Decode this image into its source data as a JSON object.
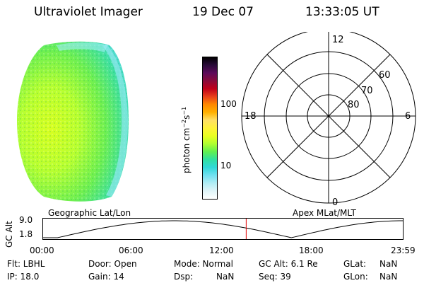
{
  "header": {
    "instrument": "Ultraviolet Imager",
    "date": "19 Dec 07",
    "time": "13:33:05 UT"
  },
  "colorbar": {
    "label": "photon cm-2s-1",
    "tick_labels": [
      "100",
      "10"
    ],
    "colors": [
      "#000000",
      "#2a0a3a",
      "#5c0a5a",
      "#8a0a3a",
      "#c0001a",
      "#e8401a",
      "#ff8800",
      "#ffb000",
      "#ffe066",
      "#fff23a",
      "#e9ff20",
      "#b0ff30",
      "#60f050",
      "#30e0a0",
      "#30d8d8",
      "#70e0f0",
      "#b0ecf4",
      "#dff4f8",
      "#ffffff"
    ]
  },
  "polar_grid": {
    "mlt_labels": {
      "top": "12",
      "bottom": "0",
      "left": "18",
      "right": "6"
    },
    "lat_labels": [
      "60",
      "70",
      "80"
    ]
  },
  "timeline": {
    "left_label": "Geographic Lat/Lon",
    "right_label": "Apex MLat/MLT",
    "ylabel": "GC Alt",
    "y_ticks": [
      "9.0",
      "1.8"
    ],
    "x_ticks": [
      "00:00",
      "06:00",
      "12:00",
      "18:00",
      "23:59"
    ],
    "marker_time": "13:33",
    "orbit_color": "#000000",
    "marker_color": "#e00000"
  },
  "info": {
    "rows": [
      [
        "Flt: LBHL",
        "Door: Open",
        "Mode: Normal",
        "GC Alt: 6.1 Re",
        "GLat:",
        "NaN"
      ],
      [
        "IP: 18.0",
        "Gain: 14",
        "Dsp:",
        "NaN",
        "Seq: 39",
        "GLon:",
        "NaN"
      ]
    ]
  }
}
